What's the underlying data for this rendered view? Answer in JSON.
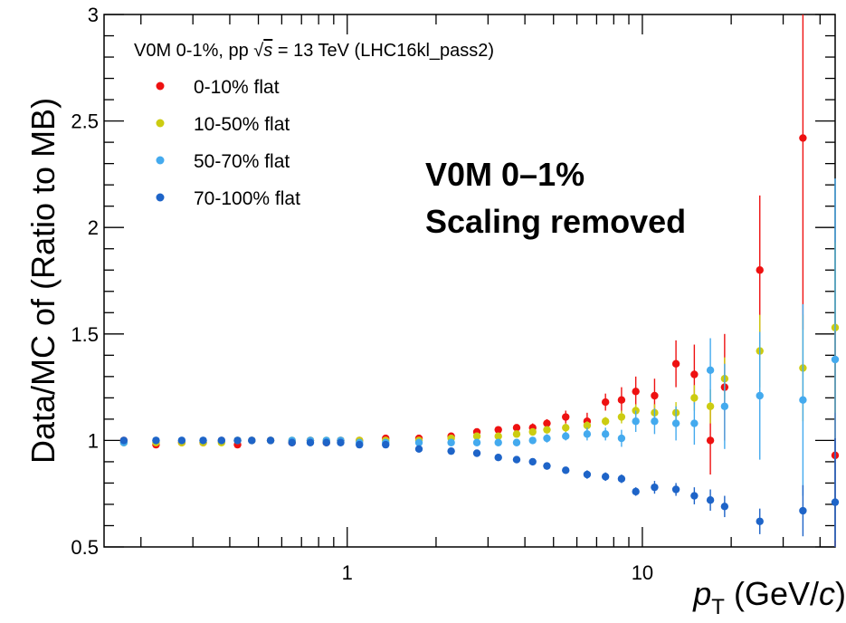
{
  "chart_data": {
    "type": "scatter",
    "title": "",
    "header": "V0M 0-1%, pp √s = 13 TeV (LHC16kl_pass2)",
    "header_parts": {
      "pre": "V0M 0-1%, pp ",
      "sqrt": "√",
      "s": "s",
      "post": " = 13 TeV (LHC16kl_pass2)"
    },
    "annotation_lines": [
      "V0M 0–1%",
      "Scaling removed"
    ],
    "xlabel_main": "p",
    "xlabel_sub": "T",
    "xlabel_unit_pre": " (GeV/",
    "xlabel_unit_c": "c",
    "xlabel_unit_post": ")",
    "ylabel": "Data/MC of (Ratio to MB)",
    "xscale": "log",
    "xlim": [
      0.15,
      45
    ],
    "ylim": [
      0.5,
      3.0
    ],
    "x_tick_labels": [
      {
        "value": 1,
        "label": "1"
      },
      {
        "value": 10,
        "label": "10"
      }
    ],
    "y_tick_labels": [
      {
        "value": 0.5,
        "label": "0.5"
      },
      {
        "value": 1,
        "label": "1"
      },
      {
        "value": 1.5,
        "label": "1.5"
      },
      {
        "value": 2,
        "label": "2"
      },
      {
        "value": 2.5,
        "label": "2.5"
      },
      {
        "value": 3,
        "label": "3"
      }
    ],
    "grid": false,
    "legend_position": "top-left",
    "series": [
      {
        "name": "0-10% flat",
        "color": "#ee1111",
        "x": [
          0.175,
          0.225,
          0.275,
          0.325,
          0.375,
          0.425,
          0.475,
          0.55,
          0.65,
          0.75,
          0.85,
          0.95,
          1.1,
          1.35,
          1.75,
          2.25,
          2.75,
          3.25,
          3.75,
          4.25,
          4.75,
          5.5,
          6.5,
          7.5,
          8.5,
          9.5,
          11,
          13,
          15,
          17,
          19,
          25,
          35,
          45
        ],
        "y": [
          1.0,
          0.98,
          0.99,
          0.99,
          1.0,
          0.98,
          1.0,
          1.0,
          0.99,
          1.0,
          0.99,
          1.0,
          1.0,
          1.01,
          1.01,
          1.02,
          1.04,
          1.05,
          1.06,
          1.06,
          1.08,
          1.11,
          1.09,
          1.18,
          1.19,
          1.23,
          1.21,
          1.36,
          1.31,
          1.0,
          1.25,
          1.8,
          2.42,
          0.93
        ],
        "err": [
          0.01,
          0.01,
          0.01,
          0.01,
          0.01,
          0.01,
          0.01,
          0.01,
          0.01,
          0.01,
          0.01,
          0.01,
          0.01,
          0.01,
          0.01,
          0.01,
          0.01,
          0.01,
          0.01,
          0.02,
          0.02,
          0.03,
          0.04,
          0.04,
          0.06,
          0.07,
          0.08,
          0.11,
          0.14,
          0.16,
          0.25,
          0.35,
          0.9,
          0.6
        ]
      },
      {
        "name": "10-50% flat",
        "color": "#cccc11",
        "x": [
          0.175,
          0.225,
          0.275,
          0.325,
          0.375,
          0.425,
          0.475,
          0.55,
          0.65,
          0.75,
          0.85,
          0.95,
          1.1,
          1.35,
          1.75,
          2.25,
          2.75,
          3.25,
          3.75,
          4.25,
          4.75,
          5.5,
          6.5,
          7.5,
          8.5,
          9.5,
          11,
          13,
          15,
          17,
          19,
          25,
          35,
          45
        ],
        "y": [
          0.99,
          0.99,
          0.99,
          0.99,
          0.99,
          1.0,
          1.0,
          1.0,
          1.0,
          1.0,
          1.0,
          1.0,
          1.0,
          1.0,
          1.0,
          1.01,
          1.02,
          1.02,
          1.03,
          1.04,
          1.05,
          1.06,
          1.07,
          1.09,
          1.11,
          1.14,
          1.13,
          1.13,
          1.2,
          1.16,
          1.29,
          1.42,
          1.34,
          1.53
        ],
        "err": [
          0.01,
          0.01,
          0.01,
          0.01,
          0.01,
          0.01,
          0.01,
          0.01,
          0.01,
          0.01,
          0.01,
          0.01,
          0.01,
          0.01,
          0.01,
          0.01,
          0.01,
          0.01,
          0.01,
          0.01,
          0.01,
          0.02,
          0.02,
          0.02,
          0.03,
          0.03,
          0.04,
          0.05,
          0.06,
          0.08,
          0.1,
          0.17,
          0.25,
          0.4
        ]
      },
      {
        "name": "50-70% flat",
        "color": "#44aaee",
        "x": [
          0.175,
          0.225,
          0.275,
          0.325,
          0.375,
          0.425,
          0.475,
          0.55,
          0.65,
          0.75,
          0.85,
          0.95,
          1.1,
          1.35,
          1.75,
          2.25,
          2.75,
          3.25,
          3.75,
          4.25,
          4.75,
          5.5,
          6.5,
          7.5,
          8.5,
          9.5,
          11,
          13,
          15,
          17,
          19,
          25,
          35,
          45
        ],
        "y": [
          0.99,
          1.0,
          1.0,
          1.0,
          1.0,
          1.0,
          1.0,
          1.0,
          1.0,
          1.0,
          1.0,
          1.0,
          0.99,
          0.99,
          0.99,
          0.99,
          0.99,
          0.99,
          0.99,
          1.0,
          1.01,
          1.02,
          1.03,
          1.03,
          1.01,
          1.09,
          1.09,
          1.08,
          1.08,
          1.33,
          1.16,
          1.21,
          1.19,
          1.38
        ],
        "err": [
          0.01,
          0.01,
          0.01,
          0.01,
          0.01,
          0.01,
          0.01,
          0.01,
          0.01,
          0.01,
          0.01,
          0.01,
          0.01,
          0.01,
          0.01,
          0.01,
          0.01,
          0.01,
          0.01,
          0.01,
          0.02,
          0.02,
          0.03,
          0.03,
          0.04,
          0.05,
          0.06,
          0.08,
          0.1,
          0.15,
          0.2,
          0.3,
          0.45,
          0.85
        ]
      },
      {
        "name": "70-100% flat",
        "color": "#1e64c8",
        "x": [
          0.175,
          0.225,
          0.275,
          0.325,
          0.375,
          0.425,
          0.475,
          0.55,
          0.65,
          0.75,
          0.85,
          0.95,
          1.1,
          1.35,
          1.75,
          2.25,
          2.75,
          3.25,
          3.75,
          4.25,
          4.75,
          5.5,
          6.5,
          7.5,
          8.5,
          9.5,
          11,
          13,
          15,
          17,
          19,
          25,
          35,
          45
        ],
        "y": [
          1.0,
          1.0,
          1.0,
          1.0,
          1.0,
          1.0,
          1.0,
          1.0,
          0.99,
          0.99,
          0.99,
          0.99,
          0.98,
          0.98,
          0.96,
          0.95,
          0.94,
          0.92,
          0.91,
          0.9,
          0.88,
          0.86,
          0.84,
          0.83,
          0.82,
          0.76,
          0.78,
          0.77,
          0.74,
          0.72,
          0.69,
          0.62,
          0.67,
          0.71
        ],
        "err": [
          0.01,
          0.01,
          0.01,
          0.01,
          0.01,
          0.01,
          0.01,
          0.01,
          0.01,
          0.01,
          0.01,
          0.01,
          0.01,
          0.01,
          0.01,
          0.01,
          0.01,
          0.01,
          0.01,
          0.01,
          0.01,
          0.01,
          0.02,
          0.02,
          0.02,
          0.02,
          0.03,
          0.03,
          0.04,
          0.05,
          0.05,
          0.06,
          0.12,
          0.3
        ]
      }
    ]
  }
}
